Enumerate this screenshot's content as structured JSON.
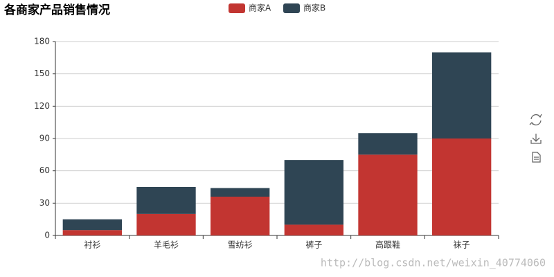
{
  "chart_data": {
    "type": "bar",
    "stacked": true,
    "title": "各商家产品销售情况",
    "categories": [
      "衬衫",
      "羊毛衫",
      "雪纺衫",
      "裤子",
      "高跟鞋",
      "袜子"
    ],
    "series": [
      {
        "name": "商家A",
        "color": "#c23531",
        "values": [
          5,
          20,
          36,
          10,
          75,
          90
        ]
      },
      {
        "name": "商家B",
        "color": "#2f4554",
        "values": [
          10,
          25,
          8,
          60,
          20,
          80
        ]
      }
    ],
    "ylim": [
      0,
      180
    ],
    "yticks": [
      0,
      30,
      60,
      90,
      120,
      150,
      180
    ],
    "grid": true,
    "legend": "top",
    "watermark": "http://blog.csdn.net/weixin_40774060"
  }
}
